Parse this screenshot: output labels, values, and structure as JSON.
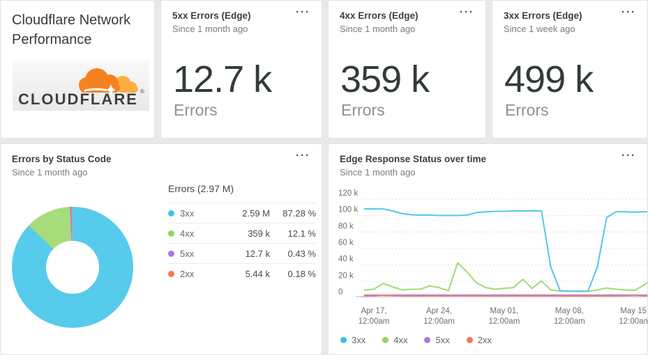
{
  "ui": {
    "menu_icon": "···"
  },
  "header_card": {
    "title": "Cloudflare Network Performance",
    "logo_text": "CLOUDFLARE",
    "logo_reg_mark": "®"
  },
  "stat_cards": [
    {
      "title": "5xx Errors (Edge)",
      "subtitle": "Since 1 month ago",
      "value": "12.7 k",
      "label": "Errors"
    },
    {
      "title": "4xx Errors (Edge)",
      "subtitle": "Since 1 month ago",
      "value": "359 k",
      "label": "Errors"
    },
    {
      "title": "3xx Errors (Edge)",
      "subtitle": "Since 1 week ago",
      "value": "499 k",
      "label": "Errors"
    }
  ],
  "donut_panel": {
    "title": "Errors by Status Code",
    "subtitle": "Since 1 month ago",
    "table": {
      "header": "Errors (2.97 M)",
      "rows": [
        {
          "code": "3xx",
          "value": "2.59 M",
          "pct": "87.28 %"
        },
        {
          "code": "4xx",
          "value": "359 k",
          "pct": "12.1 %"
        },
        {
          "code": "5xx",
          "value": "12.7 k",
          "pct": "0.43 %"
        },
        {
          "code": "2xx",
          "value": "5.44 k",
          "pct": "0.18 %"
        }
      ]
    }
  },
  "line_panel": {
    "title": "Edge Response Status over time",
    "subtitle": "Since 1 month ago",
    "legend": [
      "3xx",
      "4xx",
      "5xx",
      "2xx"
    ]
  },
  "colors": {
    "3xx": "#3EC0E4",
    "4xx": "#90D563",
    "5xx": "#A77BD9",
    "2xx": "#F4764F"
  },
  "chart_data": [
    {
      "type": "pie",
      "donut": true,
      "title": "Errors by Status Code",
      "subtitle": "Since 1 month ago",
      "total_label": "Errors (2.97 M)",
      "start_angle": "top",
      "direction": "clockwise",
      "segments": [
        {
          "name": "3xx",
          "value_label": "2.59 M",
          "pct": 87.28,
          "color": "#57CBEC"
        },
        {
          "name": "4xx",
          "value_label": "359 k",
          "pct": 12.1,
          "color": "#A6DC79"
        },
        {
          "name": "5xx",
          "value_label": "12.7 k",
          "pct": 0.43,
          "color": "#A77BD9"
        },
        {
          "name": "2xx",
          "value_label": "5.44 k",
          "pct": 0.18,
          "color": "#F4795B"
        }
      ]
    },
    {
      "type": "line",
      "title": "Edge Response Status over time",
      "subtitle": "Since 1 month ago",
      "grid": "dotted horizontal",
      "legend_position": "bottom",
      "ylim_k": [
        0,
        120
      ],
      "y_ticks": [
        {
          "v": 120,
          "label": "120 k"
        },
        {
          "v": 100,
          "label": "100 k"
        },
        {
          "v": 80,
          "label": "80 k"
        },
        {
          "v": 60,
          "label": "60 k"
        },
        {
          "v": 40,
          "label": "40 k"
        },
        {
          "v": 20,
          "label": "20 k"
        },
        {
          "v": 0,
          "label": "0"
        }
      ],
      "x_ticks": [
        {
          "day": 0,
          "l1": "Apr 17,",
          "l2": "12:00am"
        },
        {
          "day": 7,
          "l1": "Apr 24,",
          "l2": "12:00am"
        },
        {
          "day": 14,
          "l1": "May 01,",
          "l2": "12:00am"
        },
        {
          "day": 21,
          "l1": "May 08,",
          "l2": "12:00am"
        },
        {
          "day": 28,
          "l1": "May 15,",
          "l2": "12:00am"
        }
      ],
      "x_days": [
        -1,
        0,
        1,
        2,
        3,
        4,
        5,
        6,
        7,
        8,
        9,
        10,
        11,
        12,
        13,
        14,
        15,
        16,
        17,
        18,
        19,
        20,
        21,
        22,
        23,
        24,
        25,
        26,
        27,
        28,
        29,
        29.5
      ],
      "series": [
        {
          "name": "3xx",
          "color": "#53C7E8",
          "values_k": [
            100.5,
            100.5,
            100.5,
            98,
            95,
            93.5,
            93,
            93,
            92.5,
            92.5,
            92.5,
            93,
            96,
            97,
            97.5,
            97.5,
            98,
            98,
            98,
            98,
            30,
            1,
            0.7,
            0.7,
            0.7,
            30,
            90,
            97,
            97,
            96.5,
            97,
            97
          ]
        },
        {
          "name": "4xx",
          "color": "#A0DA72",
          "values_k": [
            2,
            3,
            10,
            6,
            2,
            3,
            3,
            7,
            5,
            1,
            35,
            24,
            11,
            5,
            3,
            4,
            5,
            15,
            4,
            13,
            2,
            0.6,
            0.4,
            0.3,
            0.3,
            2,
            4.5,
            3,
            2,
            1.5,
            8,
            12
          ]
        },
        {
          "name": "5xx",
          "color": "#A77BD9",
          "values_k": [
            0.4,
            0.4,
            0.4,
            0.4,
            0.4,
            0.4,
            0.4,
            0.4,
            0.4,
            0.4,
            0.4,
            0.4,
            0.4,
            0.4,
            0.4,
            0.4,
            0.4,
            0.4,
            0.4,
            0.4,
            0.4,
            0.3,
            0.3,
            0.3,
            0.3,
            0.3,
            0.4,
            0.4,
            0.4,
            0.4,
            0.4,
            0.4
          ]
        },
        {
          "name": "2xx",
          "color": "#EC8577",
          "values_k": [
            0.2,
            0.2,
            1.3,
            0.8,
            0.3,
            0.3,
            0.3,
            0.4,
            0.3,
            0.3,
            0.4,
            0.3,
            0.4,
            0.3,
            0.3,
            0.3,
            0.3,
            0.4,
            0.3,
            0.3,
            0.3,
            0.2,
            0.2,
            0.2,
            0.2,
            0.2,
            0.3,
            0.3,
            0.4,
            1.0,
            0.3,
            0.3
          ]
        }
      ]
    }
  ]
}
